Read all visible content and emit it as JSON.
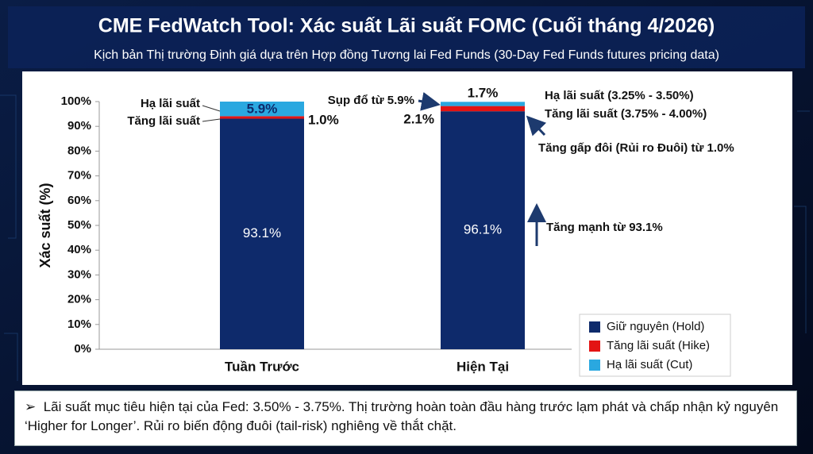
{
  "chart_data": {
    "type": "stacked_bar",
    "title": "CME FedWatch Tool: Xác suất Lãi suất FOMC (Cuối tháng 4/2026)",
    "subtitle": "Kịch bản Thị trường Định giá dựa trên Hợp đồng Tương lai Fed Funds (30-Day Fed Funds futures pricing data)",
    "y_label": "Xác suất (%)",
    "categories": [
      "Tuần Trước",
      "Hiện Tại"
    ],
    "series": [
      {
        "name": "Giữ nguyên (Hold)",
        "color": "#0e2a6b",
        "values": [
          93.1,
          96.1
        ],
        "value_labels": [
          "93.1%",
          "96.1%"
        ]
      },
      {
        "name": "Tăng lãi suất (Hike)",
        "color": "#e31414",
        "values": [
          1.0,
          2.1
        ],
        "value_labels": [
          "1.0%",
          "2.1%"
        ]
      },
      {
        "name": "Hạ lãi suất (Cut)",
        "color": "#2aa8e0",
        "values": [
          5.9,
          1.7
        ],
        "value_labels": [
          "5.9%",
          "1.7%"
        ]
      }
    ],
    "ylim": [
      0,
      100
    ],
    "yticks": [
      {
        "value": 0,
        "label": "0%"
      },
      {
        "value": 10,
        "label": "10%"
      },
      {
        "value": 20,
        "label": "20%"
      },
      {
        "value": 30,
        "label": "30%"
      },
      {
        "value": 40,
        "label": "40%"
      },
      {
        "value": 50,
        "label": "50%"
      },
      {
        "value": 60,
        "label": "60%"
      },
      {
        "value": 70,
        "label": "70%"
      },
      {
        "value": 80,
        "label": "80%"
      },
      {
        "value": 90,
        "label": "90%"
      },
      {
        "value": 100,
        "label": "100%"
      }
    ],
    "annotations": [
      "Hạ lãi suất",
      "Tăng lãi suất",
      "Sụp đổ từ 5.9%",
      "Hạ lãi suất (3.25% - 3.50%)",
      "Tăng lãi suất (3.75% - 4.00%)",
      "Tăng gấp đôi (Rủi ro Đuôi) từ 1.0%",
      "Tăng mạnh từ 93.1%"
    ],
    "legend": "lower right"
  },
  "footer": {
    "bullet": "➢",
    "text": "Lãi suất mục tiêu hiện tại của Fed: 3.50% - 3.75%. Thị trường hoàn toàn đầu hàng trước lạm phát và chấp nhận kỷ nguyên ‘Higher for Longer’. Rủi ro biến động đuôi (tail-risk) nghiêng về thắt chặt."
  }
}
